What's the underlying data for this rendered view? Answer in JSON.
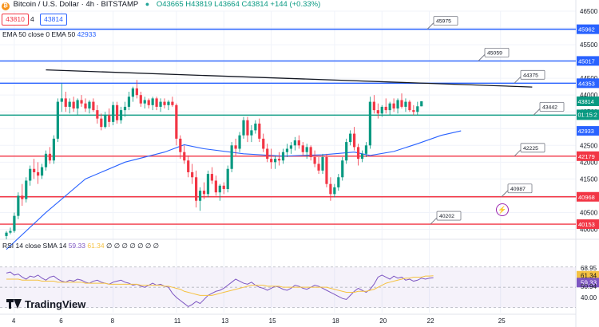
{
  "header": {
    "symbol_icon": "bitcoin-icon",
    "title": "Bitcoin / U.S. Dollar · 4h · BITSTAMP",
    "ohlc": "O43665 H43819 L43664 C43814 +144 (+0.33%)",
    "sell_price": "43810",
    "spread": "4",
    "buy_price": "43814"
  },
  "ema_legend": {
    "label": "EMA 50 close 0 EMA 50",
    "value": "42933"
  },
  "rsi_legend": {
    "label": "RSI 14 close SMA 14",
    "value1": "59.33",
    "value2": "61.34",
    "extra": "∅ ∅ ∅ ∅ ∅ ∅ ∅"
  },
  "logo": {
    "text": "TradingView"
  },
  "colors": {
    "bull": "#089981",
    "bear": "#f23645",
    "ema": "#2962ff",
    "rsi": "#7e57c2",
    "rsi_ma": "#f5c242"
  },
  "chart_data": {
    "type": "candlestick",
    "timeframe": "4h",
    "ylim": [
      39750,
      46500
    ],
    "y_ticks": [
      40000,
      40500,
      41000,
      41500,
      42000,
      42500,
      43000,
      43500,
      44000,
      44500,
      45000,
      45500,
      46000,
      46500
    ],
    "x_tick_labels": [
      "4",
      "6",
      "8",
      "11",
      "13",
      "15",
      "18",
      "20",
      "22",
      "25"
    ],
    "x_tick_index": [
      2,
      14,
      27,
      43,
      55,
      67,
      83,
      95,
      107,
      125
    ],
    "resistance_levels": [
      {
        "value": 45962,
        "label": "45962",
        "color": "#2962ff",
        "callout": "45975"
      },
      {
        "value": 45017,
        "label": "45017",
        "color": "#2962ff",
        "callout": "45059"
      },
      {
        "value": 44353,
        "label": "44353",
        "color": "#2962ff",
        "callout": "44375"
      }
    ],
    "pivot_level": {
      "value": 43402,
      "label": "43402",
      "color": "#089981",
      "callout": "43442"
    },
    "support_levels": [
      {
        "value": 42179,
        "label": "42179",
        "color": "#f23645",
        "callout": "42225"
      },
      {
        "value": 40968,
        "label": "40968",
        "color": "#f23645",
        "callout": "40987"
      },
      {
        "value": 40153,
        "label": "40153",
        "color": "#f23645",
        "callout": "40202"
      }
    ],
    "price_labels": [
      {
        "value": 43814,
        "label": "43814",
        "color": "#089981"
      },
      {
        "value": 43614,
        "label": "01:15:2",
        "color": "#089981"
      },
      {
        "value": 42933,
        "label": "42933",
        "color": "#2962ff"
      }
    ],
    "trendline": {
      "from": [
        10,
        44750
      ],
      "to": [
        133,
        44240
      ]
    },
    "candles": [
      [
        39800,
        39950,
        39700,
        39900
      ],
      [
        39900,
        40050,
        39850,
        39950
      ],
      [
        39950,
        40500,
        39900,
        40400
      ],
      [
        40400,
        41100,
        40300,
        41000
      ],
      [
        41000,
        41350,
        40700,
        40900
      ],
      [
        40900,
        41550,
        40800,
        41450
      ],
      [
        41450,
        41900,
        41300,
        41800
      ],
      [
        41800,
        42100,
        41500,
        41700
      ],
      [
        41700,
        42000,
        41350,
        41600
      ],
      [
        41600,
        41950,
        41500,
        41850
      ],
      [
        41850,
        42350,
        41750,
        42250
      ],
      [
        42250,
        42450,
        41950,
        42050
      ],
      [
        42050,
        42800,
        41950,
        42700
      ],
      [
        42700,
        43900,
        42600,
        43800
      ],
      [
        43800,
        44350,
        43500,
        43900
      ],
      [
        43900,
        44100,
        43500,
        43650
      ],
      [
        43650,
        43900,
        43450,
        43800
      ],
      [
        43800,
        43950,
        43500,
        43600
      ],
      [
        43600,
        43900,
        43400,
        43850
      ],
      [
        43850,
        44000,
        43650,
        43750
      ],
      [
        43750,
        43900,
        43500,
        43600
      ],
      [
        43600,
        43850,
        43450,
        43800
      ],
      [
        43800,
        43900,
        43500,
        43550
      ],
      [
        43550,
        43700,
        43150,
        43300
      ],
      [
        43300,
        43450,
        42950,
        43050
      ],
      [
        43050,
        43500,
        43000,
        43400
      ],
      [
        43400,
        43600,
        43050,
        43200
      ],
      [
        43200,
        43800,
        43100,
        43700
      ],
      [
        43700,
        43800,
        43150,
        43250
      ],
      [
        43250,
        43650,
        43150,
        43550
      ],
      [
        43550,
        43800,
        43350,
        43650
      ],
      [
        43650,
        44100,
        43550,
        43950
      ],
      [
        43950,
        44250,
        43800,
        44200
      ],
      [
        44200,
        44450,
        43900,
        44000
      ],
      [
        44000,
        44100,
        43650,
        43750
      ],
      [
        43750,
        43950,
        43600,
        43850
      ],
      [
        43850,
        43900,
        43600,
        43700
      ],
      [
        43700,
        43950,
        43550,
        43900
      ],
      [
        43900,
        43950,
        43550,
        43650
      ],
      [
        43650,
        43900,
        43500,
        43800
      ],
      [
        43800,
        43900,
        43600,
        43700
      ],
      [
        43700,
        43850,
        43550,
        43800
      ],
      [
        43800,
        43950,
        43650,
        43700
      ],
      [
        43700,
        43750,
        42500,
        42700
      ],
      [
        42700,
        42800,
        42100,
        42300
      ],
      [
        42300,
        42500,
        41950,
        42050
      ],
      [
        42050,
        42200,
        41550,
        41700
      ],
      [
        41700,
        41950,
        41350,
        41550
      ],
      [
        41550,
        41750,
        40650,
        40850
      ],
      [
        40850,
        41250,
        40550,
        41150
      ],
      [
        41150,
        41400,
        40900,
        41050
      ],
      [
        41050,
        41750,
        40950,
        41650
      ],
      [
        41650,
        41850,
        41350,
        41450
      ],
      [
        41450,
        41600,
        41000,
        41100
      ],
      [
        41100,
        41350,
        40850,
        41300
      ],
      [
        41300,
        41400,
        41050,
        41200
      ],
      [
        41200,
        41900,
        41100,
        41800
      ],
      [
        41800,
        42600,
        41700,
        42500
      ],
      [
        42500,
        42700,
        42200,
        42400
      ],
      [
        42400,
        42900,
        42300,
        42800
      ],
      [
        42800,
        43350,
        42700,
        43250
      ],
      [
        43250,
        43350,
        42600,
        42800
      ],
      [
        42800,
        43100,
        42600,
        42950
      ],
      [
        42950,
        43250,
        42850,
        43150
      ],
      [
        43150,
        43300,
        42600,
        42700
      ],
      [
        42700,
        42850,
        42300,
        42400
      ],
      [
        42400,
        42550,
        42000,
        42100
      ],
      [
        42100,
        42400,
        41800,
        42000
      ],
      [
        42000,
        42200,
        41800,
        42100
      ],
      [
        42100,
        42300,
        41900,
        42050
      ],
      [
        42050,
        42400,
        41950,
        42300
      ],
      [
        42300,
        42550,
        42150,
        42400
      ],
      [
        42400,
        42600,
        42250,
        42500
      ],
      [
        42500,
        42750,
        42350,
        42650
      ],
      [
        42650,
        42800,
        42400,
        42500
      ],
      [
        42500,
        42600,
        42200,
        42300
      ],
      [
        42300,
        42550,
        42100,
        42450
      ],
      [
        42450,
        42500,
        42050,
        42150
      ],
      [
        42150,
        42350,
        41850,
        41950
      ],
      [
        41950,
        42150,
        41650,
        41750
      ],
      [
        41750,
        42250,
        41650,
        42150
      ],
      [
        42150,
        42250,
        41250,
        41350
      ],
      [
        41350,
        41550,
        40850,
        41050
      ],
      [
        41050,
        41350,
        40950,
        41250
      ],
      [
        41250,
        41650,
        41150,
        41550
      ],
      [
        41550,
        42150,
        41450,
        42050
      ],
      [
        42050,
        42700,
        41950,
        42600
      ],
      [
        42600,
        42950,
        42500,
        42850
      ],
      [
        42850,
        43050,
        42350,
        42450
      ],
      [
        42450,
        42550,
        41900,
        42100
      ],
      [
        42100,
        42350,
        42000,
        42250
      ],
      [
        42250,
        42600,
        42150,
        42500
      ],
      [
        42500,
        43950,
        42400,
        43800
      ],
      [
        43800,
        44000,
        43450,
        43550
      ],
      [
        43550,
        43750,
        43300,
        43450
      ],
      [
        43450,
        43700,
        43350,
        43650
      ],
      [
        43650,
        43900,
        43450,
        43550
      ],
      [
        43550,
        43800,
        43400,
        43750
      ],
      [
        43750,
        43900,
        43500,
        43600
      ],
      [
        43600,
        43900,
        43450,
        43850
      ],
      [
        43850,
        44050,
        43600,
        43650
      ],
      [
        43650,
        43900,
        43500,
        43800
      ],
      [
        43800,
        43850,
        43500,
        43550
      ],
      [
        43550,
        43700,
        43400,
        43500
      ],
      [
        43500,
        43800,
        43400,
        43665
      ],
      [
        43665,
        43819,
        43664,
        43814
      ]
    ],
    "ema": [
      [
        0,
        39400
      ],
      [
        10,
        40500
      ],
      [
        20,
        41500
      ],
      [
        30,
        42000
      ],
      [
        40,
        42300
      ],
      [
        45,
        42520
      ],
      [
        50,
        42400
      ],
      [
        60,
        42250
      ],
      [
        70,
        42180
      ],
      [
        80,
        42220
      ],
      [
        88,
        42300
      ],
      [
        92,
        42200
      ],
      [
        98,
        42320
      ],
      [
        104,
        42550
      ],
      [
        110,
        42800
      ],
      [
        115,
        42933
      ]
    ],
    "rsi": {
      "ylim": [
        25,
        80
      ],
      "y_ticks": [
        68.95,
        61.34,
        59.33,
        50.94,
        40.0
      ],
      "tick_labels": [
        "68.95",
        "61.34",
        "59.33",
        "50.94",
        "40.00"
      ],
      "values": [
        64,
        65,
        62,
        63,
        60,
        58,
        61,
        60,
        62,
        59,
        57,
        60,
        61,
        58,
        56,
        55,
        57,
        56,
        58,
        57,
        55,
        54,
        56,
        57,
        55,
        54,
        53,
        55,
        56,
        57,
        55,
        54,
        52,
        53,
        51,
        50,
        52,
        54,
        52,
        53,
        51,
        50,
        44,
        40,
        37,
        34,
        31,
        33,
        36,
        34,
        38,
        42,
        44,
        46,
        47,
        49,
        52,
        55,
        58,
        56,
        54,
        53,
        55,
        52,
        50,
        49,
        47,
        49,
        51,
        50,
        48,
        47,
        49,
        52,
        51,
        49,
        48,
        50,
        52,
        51,
        49,
        47,
        45,
        43,
        41,
        39,
        38,
        42,
        46,
        49,
        47,
        45,
        48,
        53,
        60,
        62,
        60,
        58,
        61,
        59,
        60,
        57,
        58,
        56,
        57,
        59,
        58,
        59,
        59.33
      ],
      "ma": [
        58,
        58,
        58,
        58,
        57,
        57,
        57,
        57,
        57,
        56,
        56,
        56,
        56,
        55,
        55,
        55,
        55,
        55,
        55,
        55,
        54,
        54,
        54,
        54,
        54,
        54,
        53,
        53,
        53,
        53,
        53,
        53,
        53,
        53,
        52,
        52,
        52,
        52,
        52,
        52,
        51,
        51,
        50,
        49,
        48,
        46,
        45,
        44,
        43,
        42,
        42,
        42,
        42,
        43,
        44,
        45,
        46,
        47,
        48,
        49,
        50,
        51,
        52,
        52,
        52,
        52,
        51,
        51,
        51,
        51,
        50,
        50,
        50,
        50,
        50,
        50,
        50,
        50,
        50,
        50,
        50,
        50,
        49,
        48,
        47,
        46,
        45,
        45,
        45,
        46,
        46,
        46,
        47,
        48,
        50,
        52,
        54,
        55,
        56,
        57,
        58,
        59,
        59,
        60,
        60,
        60,
        61,
        61,
        61.34
      ]
    }
  }
}
